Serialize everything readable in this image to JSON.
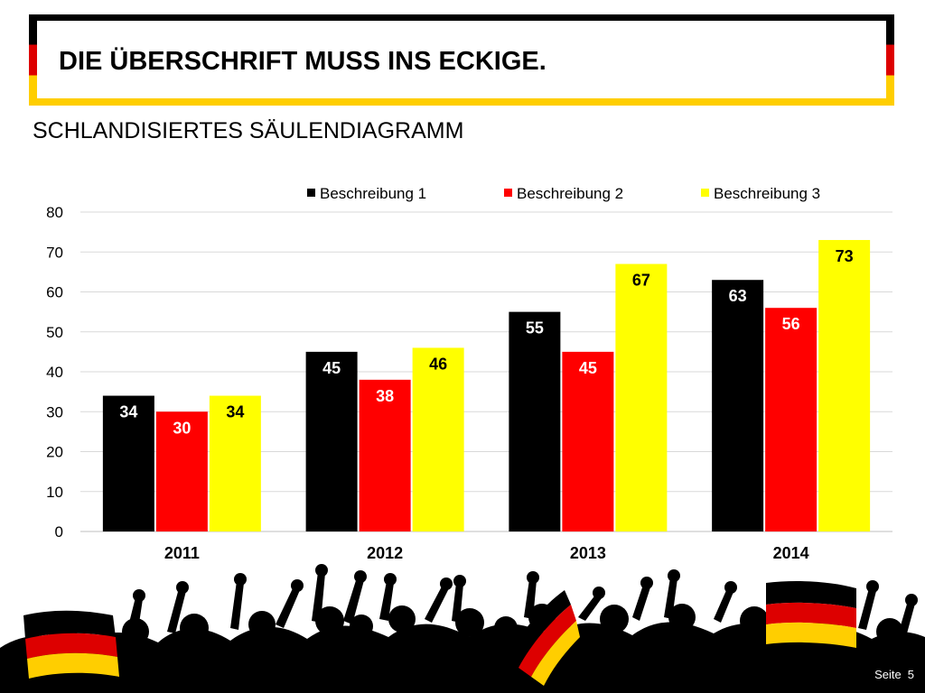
{
  "slide": {
    "title": "DIE ÜBERSCHRIFT MUSS INS ECKIGE.",
    "subtitle": "SCHLANDISIERTES SÄULENDIAGRAMM",
    "footer_label": "Seite",
    "page_number": "5"
  },
  "colors": {
    "black": "#000000",
    "red": "#ff0000",
    "gold": "#ffff00",
    "flag_red": "#dd0000",
    "flag_gold": "#ffce00"
  },
  "chart_data": {
    "type": "bar",
    "title": "",
    "xlabel": "",
    "ylabel": "",
    "categories": [
      "2011",
      "2012",
      "2013",
      "2014"
    ],
    "series": [
      {
        "name": "Beschreibung 1",
        "color": "#000000",
        "label_color": "#ffffff",
        "values": [
          34,
          45,
          55,
          63
        ]
      },
      {
        "name": "Beschreibung 2",
        "color": "#ff0000",
        "label_color": "#ffffff",
        "values": [
          30,
          38,
          45,
          56
        ]
      },
      {
        "name": "Beschreibung 3",
        "color": "#ffff00",
        "label_color": "#000000",
        "values": [
          34,
          46,
          67,
          73
        ]
      }
    ],
    "ylim": [
      0,
      80
    ],
    "yticks": [
      0,
      10,
      20,
      30,
      40,
      50,
      60,
      70,
      80
    ],
    "grid": true,
    "legend_position": "top-right",
    "data_labels": "inside-top"
  }
}
